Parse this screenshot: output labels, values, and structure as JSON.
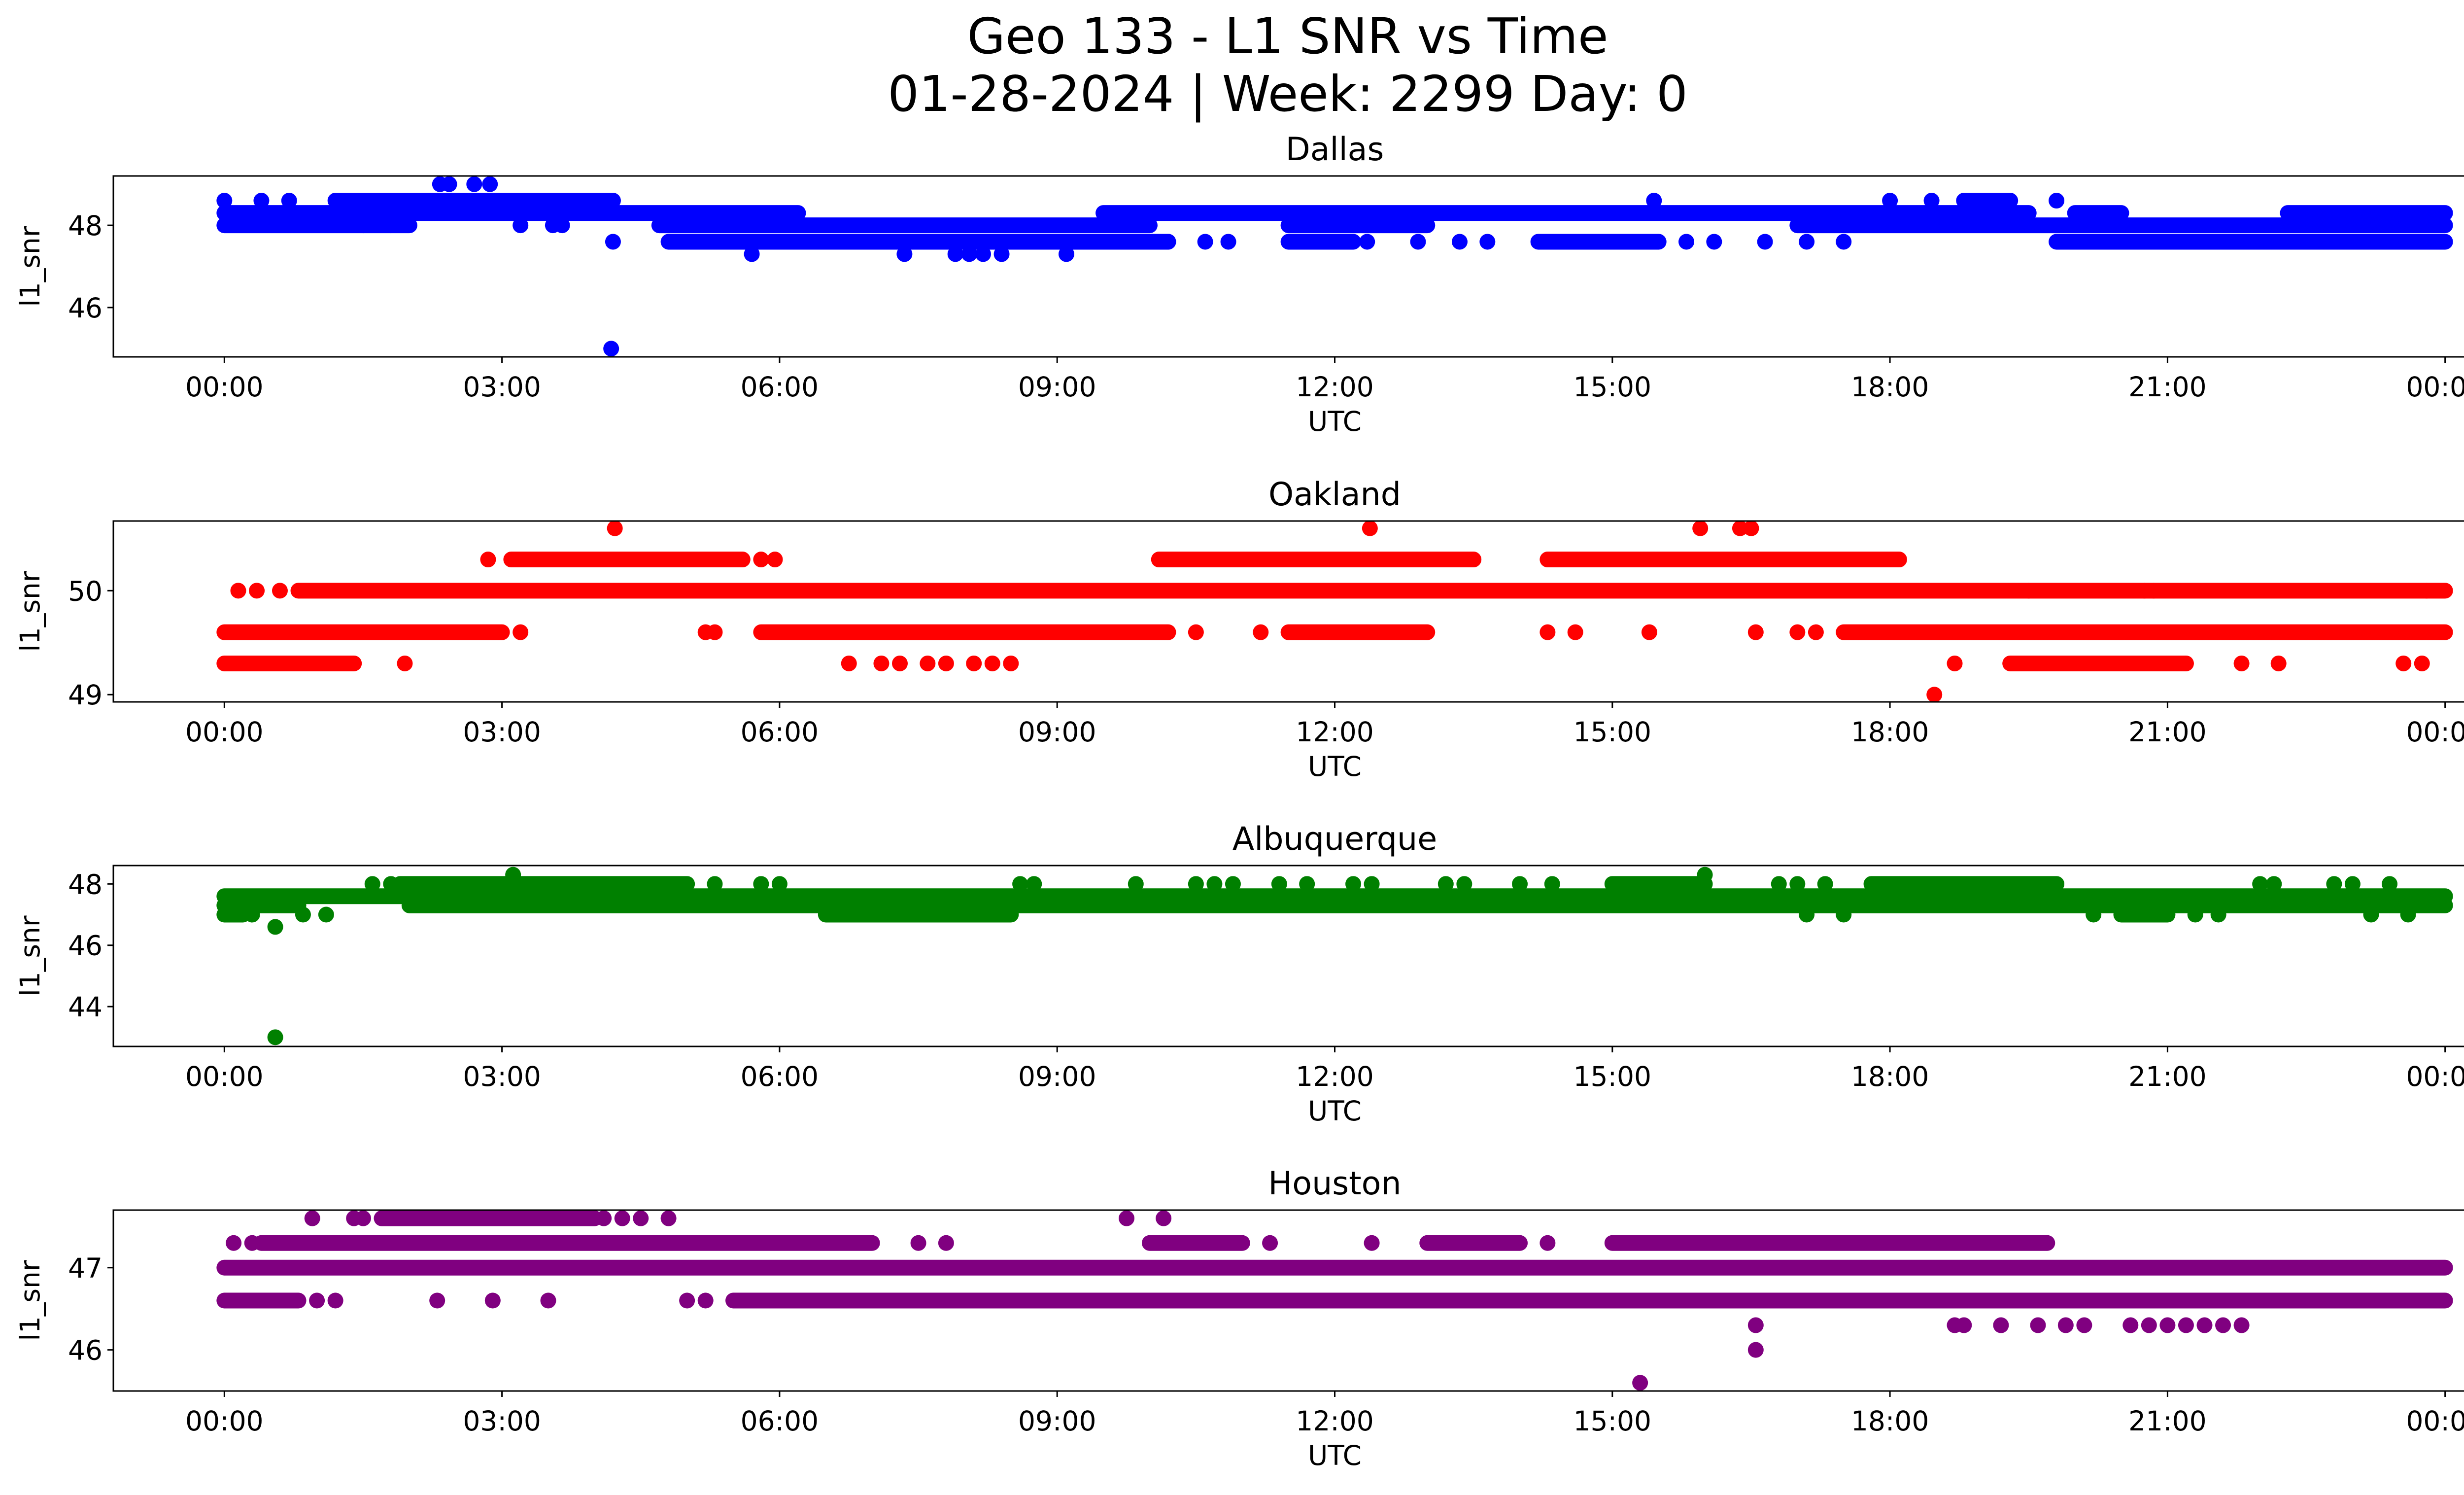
{
  "figure": {
    "title_line1": "Geo 133 - L1 SNR vs Time",
    "title_line2": "01-28-2024 | Week: 2299 Day: 0"
  },
  "chart_data": [
    {
      "type": "scatter",
      "title": "Dallas",
      "xlabel": "UTC",
      "ylabel": "l1_snr",
      "color": "#0000ff",
      "x_ticks": [
        "00:00",
        "03:00",
        "06:00",
        "09:00",
        "12:00",
        "15:00",
        "18:00",
        "21:00",
        "00:00"
      ],
      "y_ticks": [
        46,
        48
      ],
      "xlim_hours": [
        -1.2,
        25.2
      ],
      "ylim": [
        44.8,
        49.2
      ],
      "bands": [
        {
          "y": 48.0,
          "segments": [
            [
              0,
              2.0
            ],
            [
              4.7,
              10.0
            ],
            [
              11.5,
              13.0
            ],
            [
              17.0,
              24.0
            ]
          ]
        },
        {
          "y": 48.3,
          "segments": [
            [
              0,
              6.2
            ],
            [
              9.5,
              19.5
            ],
            [
              20.0,
              20.5
            ],
            [
              22.3,
              24.0
            ]
          ]
        },
        {
          "y": 48.6,
          "segments": [
            [
              1.2,
              4.2
            ],
            [
              18.8,
              19.3
            ]
          ]
        },
        {
          "y": 47.6,
          "segments": [
            [
              4.8,
              10.2
            ],
            [
              11.5,
              12.2
            ],
            [
              14.2,
              15.5
            ],
            [
              19.8,
              24.0
            ]
          ]
        }
      ],
      "points": [
        {
          "t": 2.33,
          "v": 49.0
        },
        {
          "t": 2.43,
          "v": 49.0
        },
        {
          "t": 2.7,
          "v": 49.0
        },
        {
          "t": 2.87,
          "v": 49.0
        },
        {
          "t": 0.0,
          "v": 48.6
        },
        {
          "t": 0.4,
          "v": 48.6
        },
        {
          "t": 0.7,
          "v": 48.6
        },
        {
          "t": 15.45,
          "v": 48.6
        },
        {
          "t": 18.0,
          "v": 48.6
        },
        {
          "t": 18.45,
          "v": 48.6
        },
        {
          "t": 19.8,
          "v": 48.6
        },
        {
          "t": 1.5,
          "v": 48.0
        },
        {
          "t": 1.8,
          "v": 48.0
        },
        {
          "t": 3.2,
          "v": 48.0
        },
        {
          "t": 3.55,
          "v": 48.0
        },
        {
          "t": 3.65,
          "v": 48.0
        },
        {
          "t": 4.2,
          "v": 47.6
        },
        {
          "t": 10.2,
          "v": 47.6
        },
        {
          "t": 10.6,
          "v": 47.6
        },
        {
          "t": 10.85,
          "v": 47.6
        },
        {
          "t": 12.35,
          "v": 47.6
        },
        {
          "t": 12.9,
          "v": 47.6
        },
        {
          "t": 13.35,
          "v": 47.6
        },
        {
          "t": 13.65,
          "v": 47.6
        },
        {
          "t": 15.8,
          "v": 47.6
        },
        {
          "t": 16.1,
          "v": 47.6
        },
        {
          "t": 16.65,
          "v": 47.6
        },
        {
          "t": 17.1,
          "v": 47.6
        },
        {
          "t": 17.5,
          "v": 47.6
        },
        {
          "t": 5.7,
          "v": 47.3
        },
        {
          "t": 7.35,
          "v": 47.3
        },
        {
          "t": 7.9,
          "v": 47.3
        },
        {
          "t": 8.05,
          "v": 47.3
        },
        {
          "t": 8.2,
          "v": 47.3
        },
        {
          "t": 8.4,
          "v": 47.3
        },
        {
          "t": 9.1,
          "v": 47.3
        },
        {
          "t": 4.18,
          "v": 45.0
        }
      ]
    },
    {
      "type": "scatter",
      "title": "Oakland",
      "xlabel": "UTC",
      "ylabel": "l1_snr",
      "color": "#ff0000",
      "x_ticks": [
        "00:00",
        "03:00",
        "06:00",
        "09:00",
        "12:00",
        "15:00",
        "18:00",
        "21:00",
        "00:00"
      ],
      "y_ticks": [
        49,
        50
      ],
      "xlim_hours": [
        -1.2,
        25.2
      ],
      "ylim": [
        48.93,
        50.67
      ],
      "bands": [
        {
          "y": 50.0,
          "segments": [
            [
              0.8,
              24.0
            ]
          ]
        },
        {
          "y": 49.6,
          "segments": [
            [
              0,
              3.0
            ],
            [
              5.8,
              10.2
            ],
            [
              11.5,
              13.0
            ],
            [
              17.5,
              24.0
            ]
          ]
        },
        {
          "y": 50.3,
          "segments": [
            [
              3.1,
              5.6
            ],
            [
              10.1,
              13.5
            ],
            [
              14.3,
              18.1
            ]
          ]
        },
        {
          "y": 49.3,
          "segments": [
            [
              0,
              1.4
            ],
            [
              19.3,
              21.2
            ]
          ]
        }
      ],
      "points": [
        {
          "t": 4.22,
          "v": 50.6
        },
        {
          "t": 12.38,
          "v": 50.6
        },
        {
          "t": 15.95,
          "v": 50.6
        },
        {
          "t": 16.38,
          "v": 50.6
        },
        {
          "t": 16.5,
          "v": 50.6
        },
        {
          "t": 2.85,
          "v": 50.3
        },
        {
          "t": 5.8,
          "v": 50.3
        },
        {
          "t": 5.95,
          "v": 50.3
        },
        {
          "t": 0.15,
          "v": 50.0
        },
        {
          "t": 0.35,
          "v": 50.0
        },
        {
          "t": 0.6,
          "v": 50.0
        },
        {
          "t": 19.5,
          "v": 50.0
        },
        {
          "t": 20.75,
          "v": 50.0
        },
        {
          "t": 20.85,
          "v": 50.0
        },
        {
          "t": 23.8,
          "v": 50.0
        },
        {
          "t": 3.2,
          "v": 49.6
        },
        {
          "t": 5.2,
          "v": 49.6
        },
        {
          "t": 5.3,
          "v": 49.6
        },
        {
          "t": 10.5,
          "v": 49.6
        },
        {
          "t": 11.2,
          "v": 49.6
        },
        {
          "t": 14.3,
          "v": 49.6
        },
        {
          "t": 14.6,
          "v": 49.6
        },
        {
          "t": 15.4,
          "v": 49.6
        },
        {
          "t": 16.55,
          "v": 49.6
        },
        {
          "t": 17.0,
          "v": 49.6
        },
        {
          "t": 17.2,
          "v": 49.6
        },
        {
          "t": 1.95,
          "v": 49.3
        },
        {
          "t": 6.75,
          "v": 49.3
        },
        {
          "t": 7.1,
          "v": 49.3
        },
        {
          "t": 7.3,
          "v": 49.3
        },
        {
          "t": 7.6,
          "v": 49.3
        },
        {
          "t": 7.8,
          "v": 49.3
        },
        {
          "t": 8.1,
          "v": 49.3
        },
        {
          "t": 8.3,
          "v": 49.3
        },
        {
          "t": 8.5,
          "v": 49.3
        },
        {
          "t": 18.7,
          "v": 49.3
        },
        {
          "t": 21.8,
          "v": 49.3
        },
        {
          "t": 22.2,
          "v": 49.3
        },
        {
          "t": 23.55,
          "v": 49.3
        },
        {
          "t": 23.75,
          "v": 49.3
        },
        {
          "t": 18.48,
          "v": 49.0
        }
      ]
    },
    {
      "type": "scatter",
      "title": "Albuquerque",
      "xlabel": "UTC",
      "ylabel": "l1_snr",
      "color": "#008000",
      "x_ticks": [
        "00:00",
        "03:00",
        "06:00",
        "09:00",
        "12:00",
        "15:00",
        "18:00",
        "21:00",
        "00:00"
      ],
      "y_ticks": [
        44,
        46,
        48
      ],
      "xlim_hours": [
        -1.2,
        25.2
      ],
      "ylim": [
        42.7,
        48.6
      ],
      "bands": [
        {
          "y": 47.6,
          "segments": [
            [
              0,
              24.0
            ]
          ]
        },
        {
          "y": 47.3,
          "segments": [
            [
              0,
              0.8
            ],
            [
              2.0,
              24.0
            ]
          ]
        },
        {
          "y": 47.0,
          "segments": [
            [
              0,
              0.2
            ],
            [
              6.5,
              8.5
            ],
            [
              20.5,
              21.0
            ]
          ]
        },
        {
          "y": 48.0,
          "segments": [
            [
              1.9,
              5.0
            ],
            [
              15.0,
              16.0
            ],
            [
              17.8,
              19.8
            ]
          ]
        }
      ],
      "points": [
        {
          "t": 3.12,
          "v": 48.3
        },
        {
          "t": 16.0,
          "v": 48.3
        },
        {
          "t": 1.6,
          "v": 48.0
        },
        {
          "t": 1.8,
          "v": 48.0
        },
        {
          "t": 5.3,
          "v": 48.0
        },
        {
          "t": 5.8,
          "v": 48.0
        },
        {
          "t": 6.0,
          "v": 48.0
        },
        {
          "t": 8.6,
          "v": 48.0
        },
        {
          "t": 8.75,
          "v": 48.0
        },
        {
          "t": 9.85,
          "v": 48.0
        },
        {
          "t": 10.5,
          "v": 48.0
        },
        {
          "t": 10.7,
          "v": 48.0
        },
        {
          "t": 10.9,
          "v": 48.0
        },
        {
          "t": 11.4,
          "v": 48.0
        },
        {
          "t": 11.7,
          "v": 48.0
        },
        {
          "t": 12.2,
          "v": 48.0
        },
        {
          "t": 12.4,
          "v": 48.0
        },
        {
          "t": 13.2,
          "v": 48.0
        },
        {
          "t": 13.4,
          "v": 48.0
        },
        {
          "t": 14.0,
          "v": 48.0
        },
        {
          "t": 14.35,
          "v": 48.0
        },
        {
          "t": 16.8,
          "v": 48.0
        },
        {
          "t": 17.0,
          "v": 48.0
        },
        {
          "t": 17.3,
          "v": 48.0
        },
        {
          "t": 22.0,
          "v": 48.0
        },
        {
          "t": 22.15,
          "v": 48.0
        },
        {
          "t": 22.8,
          "v": 48.0
        },
        {
          "t": 23.0,
          "v": 48.0
        },
        {
          "t": 23.4,
          "v": 48.0
        },
        {
          "t": 0.15,
          "v": 47.0
        },
        {
          "t": 0.3,
          "v": 47.0
        },
        {
          "t": 0.85,
          "v": 47.0
        },
        {
          "t": 1.1,
          "v": 47.0
        },
        {
          "t": 17.1,
          "v": 47.0
        },
        {
          "t": 17.5,
          "v": 47.0
        },
        {
          "t": 20.2,
          "v": 47.0
        },
        {
          "t": 21.3,
          "v": 47.0
        },
        {
          "t": 21.55,
          "v": 47.0
        },
        {
          "t": 23.2,
          "v": 47.0
        },
        {
          "t": 23.6,
          "v": 47.0
        },
        {
          "t": 0.55,
          "v": 46.6
        },
        {
          "t": 0.55,
          "v": 43.0
        }
      ]
    },
    {
      "type": "scatter",
      "title": "Houston",
      "xlabel": "UTC",
      "ylabel": "l1_snr",
      "color": "#800080",
      "x_ticks": [
        "00:00",
        "03:00",
        "06:00",
        "09:00",
        "12:00",
        "15:00",
        "18:00",
        "21:00",
        "00:00"
      ],
      "y_ticks": [
        46,
        47
      ],
      "xlim_hours": [
        -1.2,
        25.2
      ],
      "ylim": [
        45.5,
        47.7
      ],
      "bands": [
        {
          "y": 47.0,
          "segments": [
            [
              0,
              24.0
            ]
          ]
        },
        {
          "y": 46.6,
          "segments": [
            [
              0,
              0.8
            ],
            [
              5.5,
              24.0
            ]
          ]
        },
        {
          "y": 47.3,
          "segments": [
            [
              0.4,
              7.0
            ],
            [
              10.0,
              11.0
            ],
            [
              13.0,
              14.0
            ],
            [
              15.0,
              19.7
            ]
          ]
        },
        {
          "y": 47.6,
          "segments": [
            [
              1.7,
              4.0
            ]
          ]
        }
      ],
      "points": [
        {
          "t": 0.95,
          "v": 47.6
        },
        {
          "t": 1.4,
          "v": 47.6
        },
        {
          "t": 1.5,
          "v": 47.6
        },
        {
          "t": 4.1,
          "v": 47.6
        },
        {
          "t": 4.3,
          "v": 47.6
        },
        {
          "t": 4.5,
          "v": 47.6
        },
        {
          "t": 4.8,
          "v": 47.6
        },
        {
          "t": 9.75,
          "v": 47.6
        },
        {
          "t": 10.15,
          "v": 47.6
        },
        {
          "t": 0.1,
          "v": 47.3
        },
        {
          "t": 0.3,
          "v": 47.3
        },
        {
          "t": 7.5,
          "v": 47.3
        },
        {
          "t": 7.8,
          "v": 47.3
        },
        {
          "t": 11.3,
          "v": 47.3
        },
        {
          "t": 12.4,
          "v": 47.3
        },
        {
          "t": 14.3,
          "v": 47.3
        },
        {
          "t": 1.0,
          "v": 46.6
        },
        {
          "t": 1.2,
          "v": 46.6
        },
        {
          "t": 2.3,
          "v": 46.6
        },
        {
          "t": 2.9,
          "v": 46.6
        },
        {
          "t": 3.5,
          "v": 46.6
        },
        {
          "t": 5.0,
          "v": 46.6
        },
        {
          "t": 5.2,
          "v": 46.6
        },
        {
          "t": 16.1,
          "v": 46.6
        },
        {
          "t": 16.4,
          "v": 46.6
        },
        {
          "t": 16.7,
          "v": 46.6
        },
        {
          "t": 18.7,
          "v": 46.3
        },
        {
          "t": 18.8,
          "v": 46.3
        },
        {
          "t": 19.2,
          "v": 46.3
        },
        {
          "t": 19.6,
          "v": 46.3
        },
        {
          "t": 19.9,
          "v": 46.3
        },
        {
          "t": 20.1,
          "v": 46.3
        },
        {
          "t": 20.6,
          "v": 46.3
        },
        {
          "t": 20.8,
          "v": 46.3
        },
        {
          "t": 21.0,
          "v": 46.3
        },
        {
          "t": 21.2,
          "v": 46.3
        },
        {
          "t": 21.4,
          "v": 46.3
        },
        {
          "t": 21.6,
          "v": 46.3
        },
        {
          "t": 21.8,
          "v": 46.3
        },
        {
          "t": 16.55,
          "v": 46.3
        },
        {
          "t": 16.55,
          "v": 46.0
        },
        {
          "t": 15.3,
          "v": 45.6
        }
      ]
    }
  ]
}
